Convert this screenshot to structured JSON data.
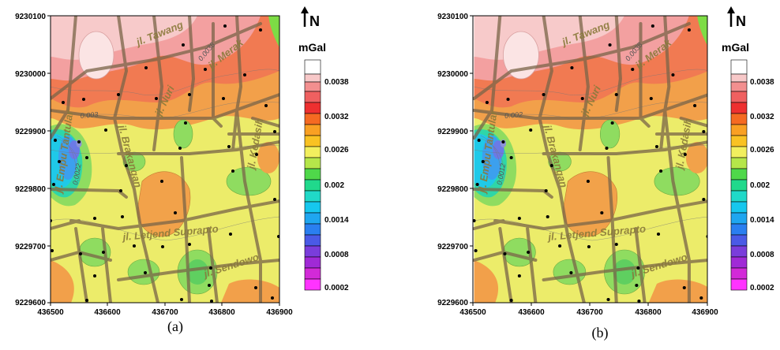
{
  "panels": [
    {
      "caption": "(a)",
      "north": "N",
      "unit": "mGal",
      "x_ticks": [
        "436500",
        "436600",
        "436700",
        "436800",
        "436900"
      ],
      "y_ticks": [
        "9230100",
        "9230000",
        "9229900",
        "9229800",
        "9229700",
        "9229600"
      ],
      "colorbar_labels": [
        "0.0038",
        "0.0032",
        "0.0026",
        "0.002",
        "0.0014",
        "0.0008",
        "0.0002"
      ],
      "contour_labels": [
        "0.0038",
        "0.003",
        "0.0022"
      ],
      "roads": {
        "tawang": "jl. Tawang",
        "merak": "jl. Merak",
        "nuri": "jl. Nuri",
        "brakangan": "jl. Brakangan",
        "kedasih": "jl. Kedasih",
        "empu": "jl. Empu Tantular",
        "letjend": "jl. Letjend Suprapto",
        "sendowo": "jl. Sendowo"
      }
    },
    {
      "caption": "(b)",
      "north": "N",
      "unit": "mGal",
      "x_ticks": [
        "436500",
        "436600",
        "436700",
        "436800",
        "436900"
      ],
      "y_ticks": [
        "9230100",
        "9230000",
        "9229900",
        "9229800",
        "9229700",
        "9229600"
      ],
      "colorbar_labels": [
        "0.0038",
        "0.0032",
        "0.0026",
        "0.002",
        "0.0014",
        "0.0008",
        "0.0002"
      ],
      "contour_labels": [
        "0.0038",
        "0.002",
        "0.0012"
      ],
      "roads": {
        "tawang": "jl. Tawang",
        "merak": "jl. Merak",
        "nuri": "jl. Nuri",
        "brakangan": "jl. Brakangan",
        "kedasih": "jl. Kedasih",
        "empu": "jl. Empu Tantular",
        "letjend": "jl. Letjend Suprapto",
        "sendowo": "jl. Sendowo"
      }
    }
  ],
  "colors": {
    "colorbar": [
      "#ffffff",
      "#f7c8c8",
      "#f38f8f",
      "#ee3030",
      "#f57a22",
      "#f9c223",
      "#f2ef5e",
      "#82dd3a",
      "#2fd84c",
      "#20d9b0",
      "#16c7ee",
      "#2a8ff0",
      "#5b55e6",
      "#8f3bd8",
      "#c22ad6",
      "#ff33ff"
    ]
  }
}
